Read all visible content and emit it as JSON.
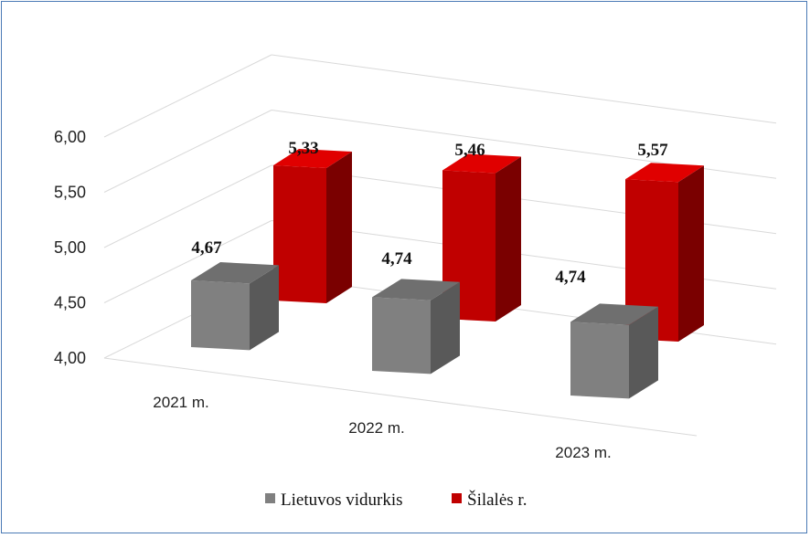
{
  "chart_data": {
    "type": "bar",
    "title": "",
    "xlabel": "",
    "ylabel": "",
    "categories": [
      "2021 m.",
      "2022 m.",
      "2023 m."
    ],
    "ylim": [
      4.0,
      6.0
    ],
    "yticks": [
      "4,00",
      "4,50",
      "5,00",
      "5,50",
      "6,00"
    ],
    "grid": true,
    "legend": "bottom",
    "series": [
      {
        "name": "Lietuvos vidurkis",
        "values": [
          4.67,
          4.74,
          4.74
        ],
        "labels": [
          "4,67",
          "4,74",
          "4,74"
        ],
        "color": "#808080"
      },
      {
        "name": "Šilalės r.",
        "values": [
          5.33,
          5.46,
          5.57
        ],
        "labels": [
          "5,33",
          "5,46",
          "5,57"
        ],
        "color": "#c00000"
      }
    ]
  }
}
